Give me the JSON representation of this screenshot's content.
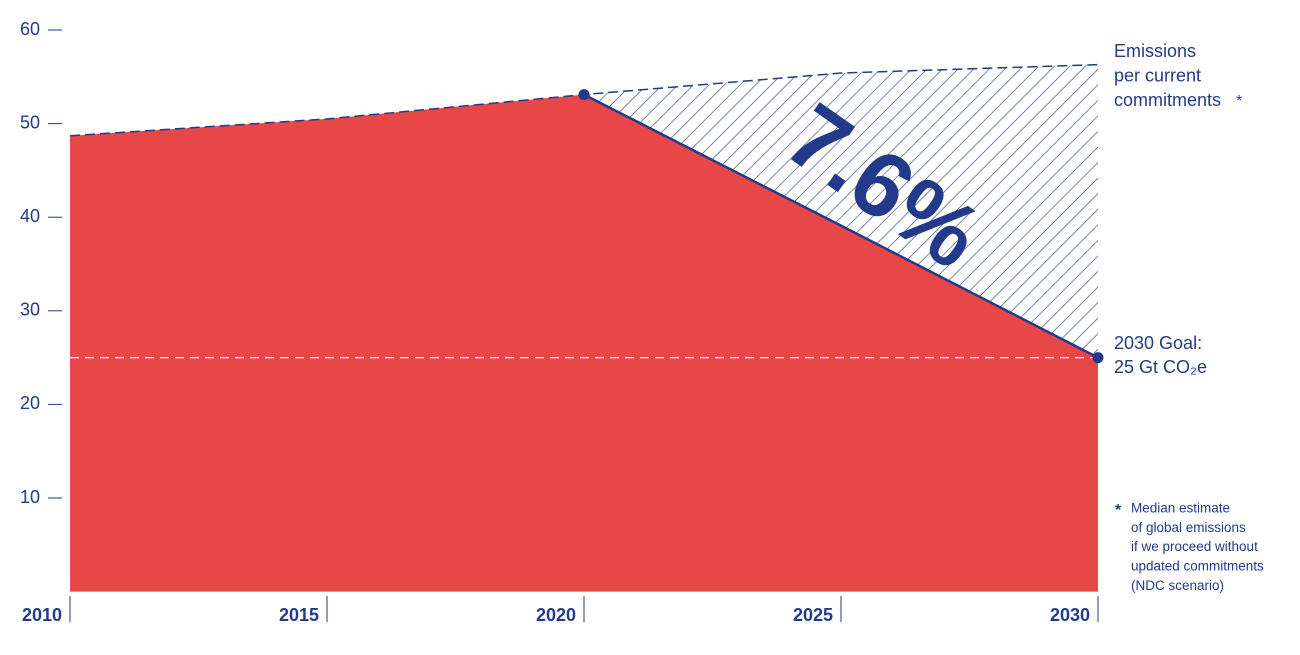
{
  "chart_data": {
    "type": "area",
    "x": [
      2010,
      2015,
      2020,
      2025,
      2030
    ],
    "xlim": [
      2010,
      2030
    ],
    "xticks": [
      2010,
      2015,
      2020,
      2025,
      2030
    ],
    "ylim": [
      0,
      60
    ],
    "yticks": [
      10,
      20,
      30,
      40,
      50,
      60
    ],
    "series": [
      {
        "color": "#e84748",
        "values": [
          48.7,
          50.5,
          53.1,
          39.1,
          25
        ]
      },
      {
        "color": "#233a8a",
        "values": [
          48.7,
          50.5,
          53.1,
          55.4,
          56.3
        ]
      }
    ],
    "goal": 25,
    "reduction_label": "7.6%",
    "ndc_label": [
      "Emissions",
      "per current",
      "commitments"
    ],
    "asterisk": "*",
    "goal_label": [
      "2030 Goal:",
      "25 Gt CO₂e"
    ],
    "footnote": [
      "Median estimate",
      "of global emissions",
      "if we proceed without",
      "updated commitments",
      "(NDC scenario)"
    ]
  }
}
